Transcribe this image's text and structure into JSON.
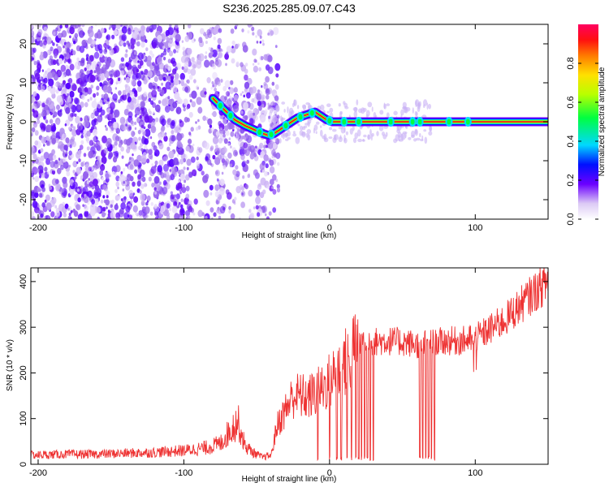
{
  "title": "S236.2025.285.09.07.C43",
  "chart_data": [
    {
      "type": "heatmap",
      "xlabel": "Height of straight line (km)",
      "ylabel": "Frequency (Hz)",
      "xlim": [
        -205,
        150
      ],
      "ylim": [
        -25,
        25
      ],
      "xticks": [
        -200,
        -100,
        0,
        100
      ],
      "yticks": [
        -20,
        -10,
        0,
        10,
        20
      ],
      "colorbar": {
        "label": "Normalized spectral amplitude",
        "range": [
          0,
          1
        ],
        "ticks": [
          0.0,
          0.2,
          0.4,
          0.6,
          0.8
        ]
      },
      "ridge": {
        "description_free_fields_only": true,
        "x": [
          -80,
          -72,
          -65,
          -58,
          -52,
          -46,
          -42,
          -38,
          -34,
          -30,
          -26,
          -22,
          -18,
          -14,
          -10,
          -6,
          -2,
          2,
          6,
          10,
          15,
          20,
          30,
          40,
          50,
          60,
          70,
          80,
          90,
          100,
          120,
          150
        ],
        "y": [
          6,
          3,
          0.5,
          -1,
          -2,
          -3,
          -3.5,
          -3,
          -2,
          -1,
          0,
          1,
          1.5,
          2,
          2.5,
          1.5,
          0.5,
          0,
          0,
          0,
          0,
          0,
          0,
          0,
          0,
          0,
          0,
          0,
          0,
          0,
          0,
          0
        ]
      }
    },
    {
      "type": "line",
      "xlabel": "Height of straight line (km)",
      "ylabel": "SNR (10 * v/v)",
      "xlim": [
        -205,
        150
      ],
      "ylim": [
        0,
        430
      ],
      "xticks": [
        -200,
        -100,
        0,
        100
      ],
      "yticks": [
        0,
        100,
        200,
        300,
        400
      ],
      "series": [
        {
          "name": "SNR",
          "color": "#ee3333",
          "x": [
            -205,
            -180,
            -160,
            -140,
            -120,
            -100,
            -85,
            -75,
            -68,
            -63,
            -58,
            -52,
            -46,
            -40,
            -36,
            -30,
            -25,
            -20,
            -15,
            -10,
            -5,
            0,
            5,
            10,
            15,
            20,
            25,
            30,
            40,
            50,
            60,
            70,
            80,
            90,
            100,
            110,
            120,
            130,
            140,
            150
          ],
          "values": [
            20,
            22,
            22,
            24,
            26,
            30,
            36,
            45,
            75,
            95,
            40,
            25,
            15,
            20,
            85,
            120,
            150,
            150,
            145,
            155,
            165,
            185,
            200,
            220,
            240,
            265,
            270,
            268,
            270,
            268,
            262,
            265,
            270,
            270,
            275,
            295,
            315,
            345,
            375,
            400
          ]
        }
      ],
      "dropouts_x": [
        -8,
        0,
        5,
        8,
        12,
        15,
        18,
        20,
        22,
        24,
        26,
        28,
        30,
        62,
        64,
        66,
        68,
        70,
        72
      ]
    }
  ],
  "colors": {
    "background": "#ffffff",
    "axis": "#000000",
    "line": "#ee3333",
    "noise": "#7a3cf0",
    "ridge_core": "#e62020"
  }
}
